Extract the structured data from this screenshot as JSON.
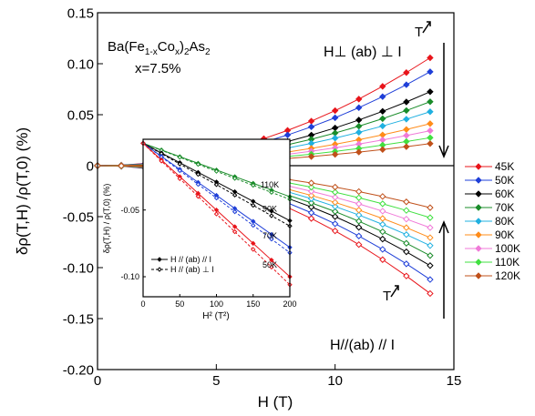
{
  "chart_data": [
    {
      "type": "line",
      "y_label": "δρ(T,H) /ρ(T,0)  (%)",
      "x_label": "H (T)",
      "formula": [
        "Ba(Fe",
        "1-x",
        "Co",
        "x",
        ")",
        "2",
        "As",
        "2"
      ],
      "composition": "x=7.5%",
      "perp_label": "H⊥ (ab) ⊥ I",
      "parallel_label": "H//(ab) // I",
      "arrow_label_top": "T",
      "arrow_label_bottom": "T",
      "xlim": [
        0,
        15
      ],
      "xticks": [
        0,
        5,
        10,
        15
      ],
      "ylim": [
        -0.2,
        0.15
      ],
      "yticks": [
        {
          "value": -0.2,
          "label": "-0.20"
        },
        -0.15,
        {
          "value": -0.1,
          "label": "-0.10"
        },
        -0.05,
        0,
        0.05,
        {
          "value": 0.1,
          "label": "0.10"
        },
        0.15
      ],
      "x": [
        0,
        1,
        2,
        3,
        4,
        5,
        6,
        7,
        8,
        9,
        10,
        11,
        12,
        13,
        14
      ],
      "series": [
        {
          "name": "45K",
          "color": "#e8141a",
          "values": [
            0,
            0.0005,
            0.0022,
            0.0049,
            0.0086,
            0.0135,
            0.0194,
            0.0265,
            0.0346,
            0.0437,
            0.054,
            0.0653,
            0.0778,
            0.0913,
            0.1058
          ],
          "values_parallel": [
            0,
            -0.0006,
            -0.0026,
            -0.0058,
            -0.0102,
            -0.016,
            -0.023,
            -0.0314,
            -0.041,
            -0.0518,
            -0.064,
            -0.0774,
            -0.0922,
            -0.1082,
            -0.1254
          ]
        },
        {
          "name": "50K",
          "color": "#1f3fd8",
          "values": [
            0,
            0.0005,
            0.0019,
            0.0042,
            0.0075,
            0.0118,
            0.0169,
            0.023,
            0.0301,
            0.0381,
            0.047,
            0.0569,
            0.0677,
            0.0794,
            0.0921
          ],
          "values_parallel": [
            0,
            -0.0006,
            -0.0023,
            -0.0051,
            -0.0091,
            -0.0143,
            -0.0205,
            -0.0279,
            -0.0365,
            -0.0462,
            -0.057,
            -0.069,
            -0.0821,
            -0.0963,
            -0.1117
          ]
        },
        {
          "name": "60K",
          "color": "#000000",
          "values": [
            0,
            0.0004,
            0.0015,
            0.0033,
            0.0059,
            0.0093,
            0.0133,
            0.0181,
            0.0237,
            0.03,
            0.037,
            0.0448,
            0.0533,
            0.0625,
            0.0725
          ],
          "values_parallel": [
            0,
            -0.0005,
            -0.002,
            -0.0045,
            -0.008,
            -0.0125,
            -0.018,
            -0.0245,
            -0.032,
            -0.0405,
            -0.05,
            -0.0605,
            -0.072,
            -0.0845,
            -0.098
          ]
        },
        {
          "name": "70K",
          "color": "#1a8c2a",
          "values": [
            0,
            0.0003,
            0.0013,
            0.0029,
            0.0051,
            0.008,
            0.0115,
            0.0157,
            0.0205,
            0.0259,
            0.032,
            0.0387,
            0.0461,
            0.0541,
            0.0627
          ],
          "values_parallel": [
            0,
            -0.0005,
            -0.0018,
            -0.0041,
            -0.0072,
            -0.0113,
            -0.0162,
            -0.0221,
            -0.0288,
            -0.0365,
            -0.045,
            -0.0545,
            -0.0648,
            -0.0761,
            -0.0882
          ]
        },
        {
          "name": "80K",
          "color": "#20b0e0",
          "values": [
            0,
            0.0003,
            0.0011,
            0.0024,
            0.0043,
            0.0068,
            0.0097,
            0.0132,
            0.0173,
            0.0219,
            0.027,
            0.0327,
            0.0389,
            0.0456,
            0.0529
          ],
          "values_parallel": [
            0,
            -0.0004,
            -0.0016,
            -0.0036,
            -0.0064,
            -0.01,
            -0.0144,
            -0.0196,
            -0.0256,
            -0.0324,
            -0.04,
            -0.0484,
            -0.0576,
            -0.0676,
            -0.0784
          ]
        },
        {
          "name": "90K",
          "color": "#ff8c1a",
          "values": [
            0,
            0.0002,
            0.0008,
            0.0019,
            0.0034,
            0.0053,
            0.0076,
            0.0103,
            0.0134,
            0.017,
            0.021,
            0.0254,
            0.0302,
            0.0355,
            0.0412
          ],
          "values_parallel": [
            0,
            -0.0004,
            -0.0014,
            -0.0032,
            -0.0058,
            -0.009,
            -0.013,
            -0.0176,
            -0.023,
            -0.0292,
            -0.036,
            -0.0436,
            -0.0518,
            -0.0608,
            -0.0706
          ]
        },
        {
          "name": "100K",
          "color": "#f07ad8",
          "values": [
            0,
            0.0002,
            0.0007,
            0.0016,
            0.0028,
            0.0044,
            0.0063,
            0.0086,
            0.0112,
            0.0142,
            0.0175,
            0.0212,
            0.0252,
            0.0296,
            0.0343
          ],
          "values_parallel": [
            0,
            -0.0003,
            -0.0012,
            -0.0028,
            -0.005,
            -0.0078,
            -0.0112,
            -0.0152,
            -0.0198,
            -0.0251,
            -0.031,
            -0.0375,
            -0.0446,
            -0.0524,
            -0.0608
          ]
        },
        {
          "name": "110K",
          "color": "#40e040",
          "values": [
            0,
            0.0001,
            0.0006,
            0.0013,
            0.0022,
            0.0035,
            0.005,
            0.0069,
            0.009,
            0.0113,
            0.014,
            0.0169,
            0.0202,
            0.0237,
            0.0274
          ],
          "values_parallel": [
            0,
            -0.0003,
            -0.001,
            -0.0023,
            -0.0042,
            -0.0065,
            -0.0094,
            -0.0127,
            -0.0166,
            -0.0211,
            -0.026,
            -0.0315,
            -0.0374,
            -0.0439,
            -0.051
          ]
        },
        {
          "name": "120K",
          "color": "#c0501a",
          "values": [
            0,
            0.0001,
            0.0004,
            0.001,
            0.0018,
            0.0028,
            0.004,
            0.0054,
            0.007,
            0.0089,
            0.011,
            0.0133,
            0.0158,
            0.0186,
            0.0216
          ],
          "values_parallel": [
            0,
            -0.0002,
            -0.0008,
            -0.0019,
            -0.0034,
            -0.0053,
            -0.0076,
            -0.0103,
            -0.0134,
            -0.017,
            -0.021,
            -0.0254,
            -0.0302,
            -0.0355,
            -0.0412
          ]
        }
      ]
    },
    {
      "type": "line",
      "y_label": "δρ(T,H) / ρ(T,0)  (%)",
      "x_label": "H² (T²)",
      "legend": [
        "H // (ab) // I",
        "H // (ab) ⊥ I"
      ],
      "xlim": [
        0,
        200
      ],
      "xticks": [
        0,
        50,
        100,
        150,
        200
      ],
      "ylim": [
        -0.115,
        0.003
      ],
      "yticks": [
        -0.05,
        {
          "value": -0.1,
          "label": "-0.10"
        }
      ],
      "x": [
        0,
        25,
        50,
        75,
        100,
        125,
        150,
        175,
        200
      ],
      "series": [
        {
          "name": "110K",
          "color": "#1a8c2a",
          "values": [
            0,
            -0.005,
            -0.01,
            -0.015,
            -0.02,
            -0.025,
            -0.03,
            -0.035,
            -0.04
          ],
          "values_perp": [
            0,
            -0.0053,
            -0.0105,
            -0.0158,
            -0.021,
            -0.0263,
            -0.0315,
            -0.0368,
            -0.042
          ]
        },
        {
          "name": "90K",
          "color": "#000000",
          "values": [
            0,
            -0.0073,
            -0.0145,
            -0.0218,
            -0.029,
            -0.0363,
            -0.0435,
            -0.0508,
            -0.058
          ],
          "values_perp": [
            0,
            -0.0078,
            -0.0155,
            -0.0233,
            -0.031,
            -0.0388,
            -0.0465,
            -0.0543,
            -0.062
          ]
        },
        {
          "name": "70K",
          "color": "#1f3fd8",
          "values": [
            0,
            -0.0098,
            -0.0195,
            -0.0293,
            -0.039,
            -0.0488,
            -0.0585,
            -0.0683,
            -0.078
          ],
          "values_perp": [
            0,
            -0.0103,
            -0.0205,
            -0.0308,
            -0.041,
            -0.0513,
            -0.0615,
            -0.0718,
            -0.082
          ]
        },
        {
          "name": "50K",
          "color": "#e8141a",
          "values": [
            0,
            -0.0125,
            -0.025,
            -0.0375,
            -0.05,
            -0.0625,
            -0.075,
            -0.0875,
            -0.1
          ],
          "values_perp": [
            0,
            -0.0133,
            -0.0265,
            -0.0398,
            -0.053,
            -0.0663,
            -0.0795,
            -0.0928,
            -0.106
          ]
        }
      ]
    }
  ]
}
